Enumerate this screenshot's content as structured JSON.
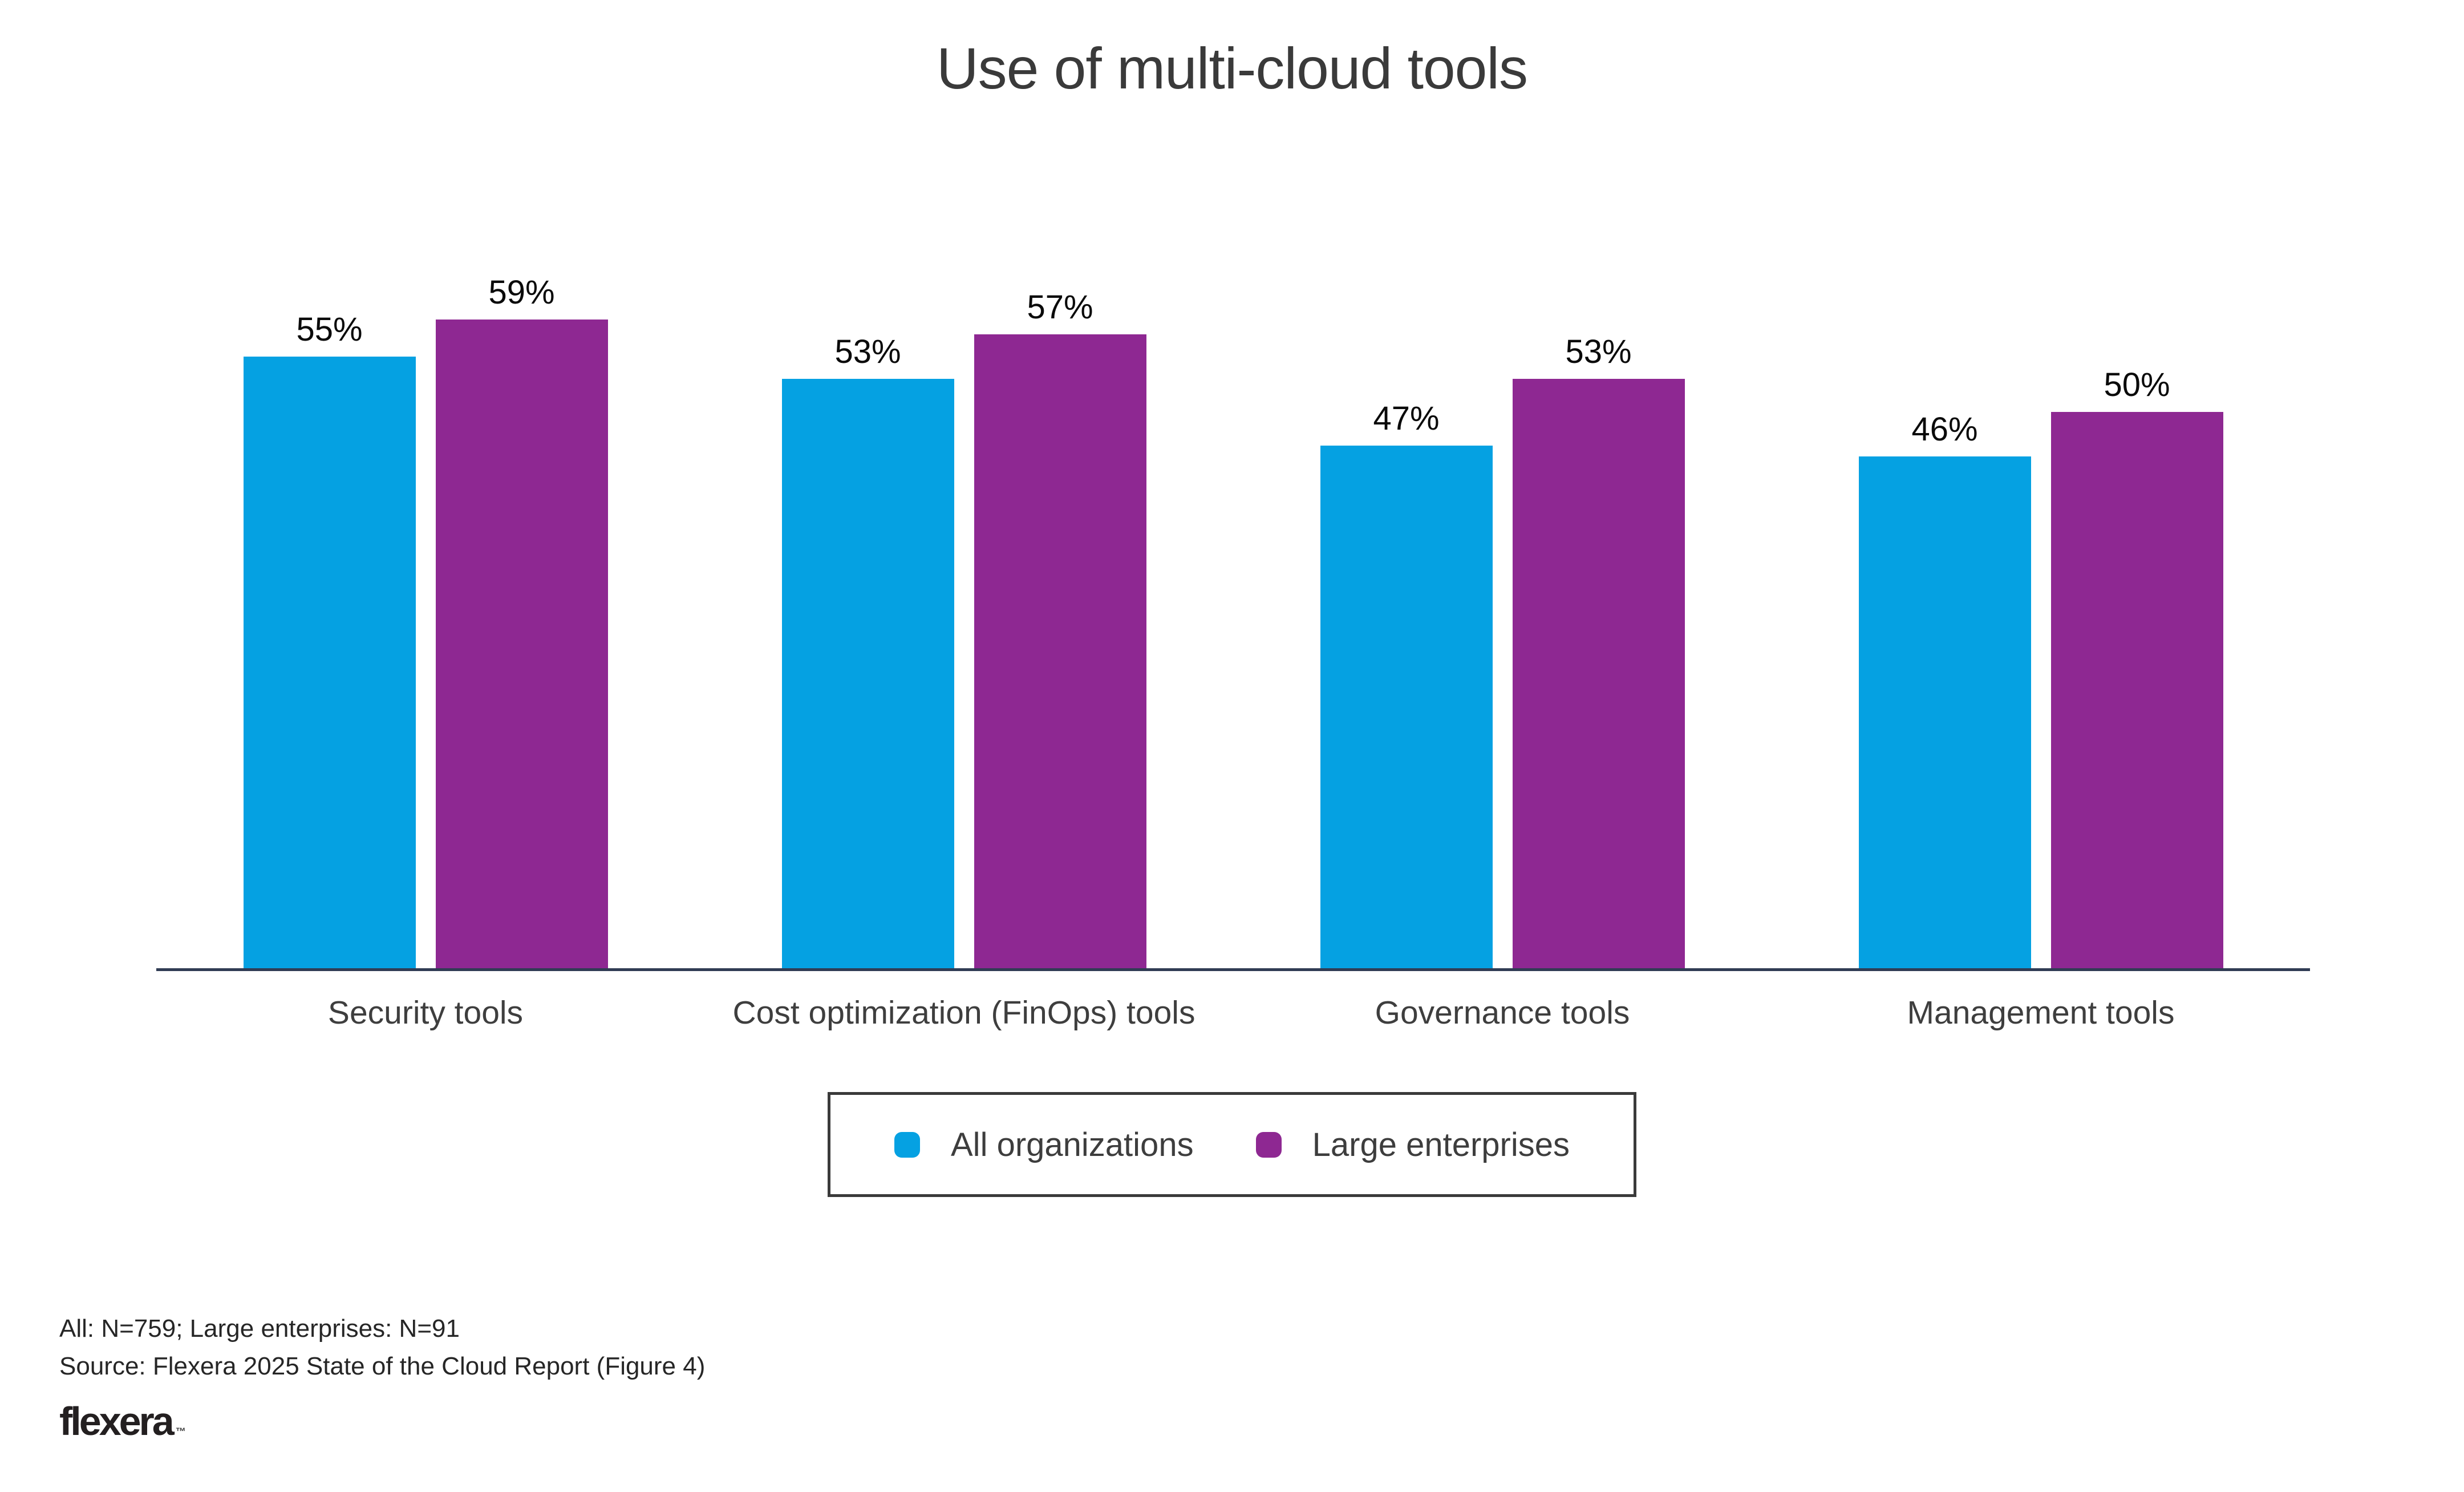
{
  "title": "Use of multi-cloud tools",
  "chart_data": {
    "type": "bar",
    "categories": [
      "Security tools",
      "Cost optimization (FinOps) tools",
      "Governance tools",
      "Management tools"
    ],
    "series": [
      {
        "name": "All organizations",
        "color": "#05A1E2",
        "values": [
          55,
          53,
          47,
          46
        ]
      },
      {
        "name": "Large enterprises",
        "color": "#8E2892",
        "values": [
          59,
          57,
          53,
          50
        ]
      }
    ],
    "data_label_suffix": "%",
    "data_labels": true,
    "ylim": [
      0,
      62
    ],
    "grid": false,
    "y_axis_visible": false,
    "legend_position": "bottom-center"
  },
  "footer": {
    "sample_note": "All: N=759; Large enterprises: N=91",
    "source_note": "Source: Flexera 2025 State of the Cloud Report (Figure 4)",
    "logo_text": "flexera",
    "logo_trademark": "™"
  },
  "colors": {
    "all_organizations": "#05A1E2",
    "large_enterprises": "#8E2892",
    "axis_line": "#303C54",
    "title_text": "#3A3A3A",
    "category_text": "#3E3E3E",
    "value_text": "#0A0A0A",
    "legend_border": "#3A3A3A",
    "footer_text": "#262626",
    "background": "#FFFFFF"
  }
}
